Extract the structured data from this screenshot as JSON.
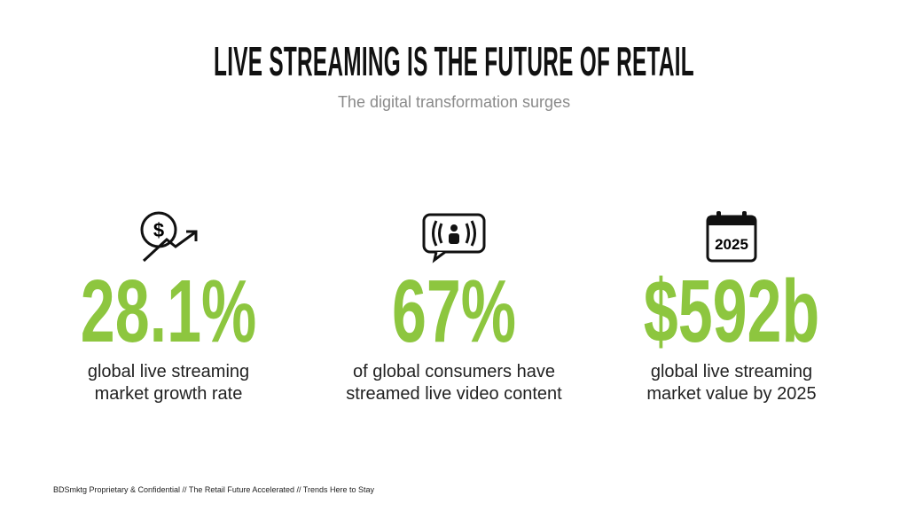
{
  "header": {
    "title": "LIVE STREAMING IS THE FUTURE OF RETAIL",
    "subtitle": "The digital transformation surges"
  },
  "stats": [
    {
      "value": "28.1%",
      "description": [
        "global live streaming",
        "market growth rate"
      ]
    },
    {
      "value": "67%",
      "description": [
        "of global consumers have",
        "streamed live video content"
      ]
    },
    {
      "value": "$592b",
      "description": [
        "global live streaming",
        "market value by 2025"
      ],
      "icon_label": "2025"
    }
  ],
  "footer": "BDSmktg Proprietary & Confidential // The Retail Future Accelerated  // Trends Here to Stay"
}
